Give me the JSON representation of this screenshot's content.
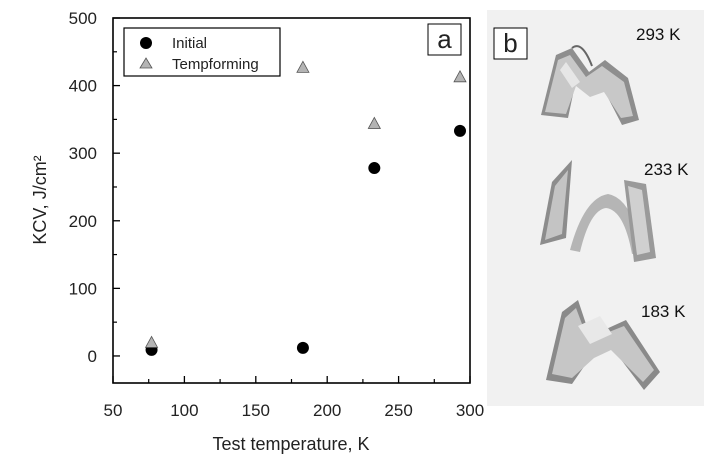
{
  "chart_data": {
    "type": "scatter",
    "panel_label": "a",
    "xlabel": "Test temperature, K",
    "ylabel": "KCV, J/cm²",
    "xlim": [
      50,
      300
    ],
    "ylim": [
      -40,
      500
    ],
    "xticks": [
      50,
      100,
      150,
      200,
      250,
      300
    ],
    "yticks": [
      0,
      100,
      200,
      300,
      400,
      500
    ],
    "grid": false,
    "legend_position": "top-left",
    "series": [
      {
        "name": "Initial",
        "marker": "circle",
        "color": "#000000",
        "x": [
          77,
          183,
          233,
          293
        ],
        "y": [
          9,
          12,
          278,
          333
        ]
      },
      {
        "name": "Tempforming",
        "marker": "triangle",
        "color": "#b4b4b4",
        "x": [
          77,
          183,
          233,
          293
        ],
        "y": [
          20,
          427,
          344,
          413
        ]
      }
    ]
  },
  "photo_panel": {
    "panel_label": "b",
    "specimens": [
      {
        "label": "293 K",
        "icon": "bent-specimen-icon"
      },
      {
        "label": "233 K",
        "icon": "split-specimen-icon"
      },
      {
        "label": "183 K",
        "icon": "cracked-specimen-icon"
      }
    ]
  }
}
